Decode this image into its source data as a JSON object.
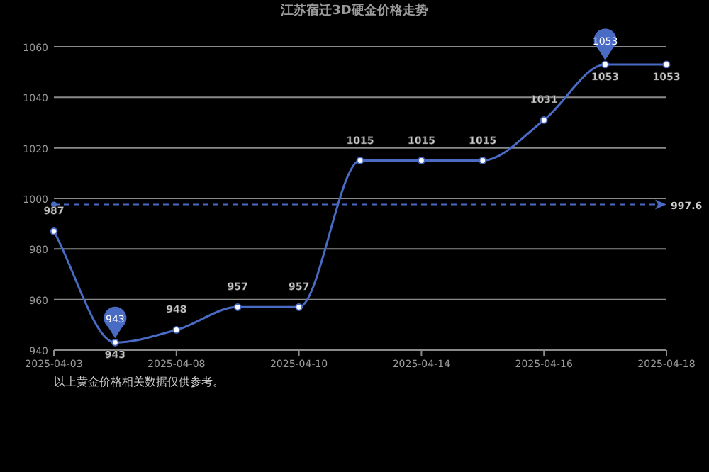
{
  "chart_data": {
    "type": "line",
    "title": "江苏宿迁3D硬金价格走势",
    "categories": [
      "2025-04-03",
      null,
      "2025-04-08",
      null,
      "2025-04-10",
      null,
      "2025-04-14",
      null,
      "2025-04-16",
      null,
      "2025-04-18"
    ],
    "series": [
      {
        "color": "#4a6bc4",
        "values": [
          987,
          943,
          948,
          957,
          957,
          1015,
          1015,
          1015,
          1031,
          1053,
          1053
        ]
      }
    ],
    "data_labels": true,
    "marker": "circle",
    "line_style": "solid",
    "ylim": [
      940,
      1060
    ],
    "yticks": [
      940,
      960,
      980,
      1000,
      1020,
      1040,
      1060
    ],
    "grid": "y",
    "ref_lines": [
      {
        "axis": "y",
        "value": 997.6,
        "label": "997.6",
        "color": "#4a6bc4",
        "line_style": "dashed"
      }
    ],
    "annotations": [
      {
        "text": "943",
        "y": 943
      },
      {
        "text": "1053",
        "y": 1053
      },
      "以上黄金价格相关数据仅供参考。"
    ]
  }
}
